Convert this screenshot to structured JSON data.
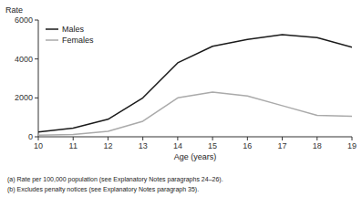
{
  "chart_data": {
    "type": "line",
    "x": [
      10,
      11,
      12,
      13,
      14,
      15,
      16,
      17,
      18,
      19
    ],
    "series": [
      {
        "name": "Males",
        "color": "#1a1a1a",
        "values": [
          250,
          450,
          900,
          2000,
          3800,
          4650,
          5000,
          5250,
          5100,
          4600
        ]
      },
      {
        "name": "Females",
        "color": "#aaaaaa",
        "values": [
          80,
          120,
          280,
          800,
          2000,
          2300,
          2100,
          1600,
          1100,
          1050
        ]
      }
    ],
    "xlabel": "Age (years)",
    "ylabel": "Rate",
    "xlim": [
      10,
      19
    ],
    "ylim": [
      0,
      6000
    ],
    "xticks": [
      10,
      11,
      12,
      13,
      14,
      15,
      16,
      17,
      18,
      19
    ],
    "yticks": [
      0,
      2000,
      4000,
      6000
    ],
    "annotations": [
      "(a)  Rate per 100,000 population (see Explanatory Notes paragraphs 24–26).",
      "(b)  Excludes penalty notices (see Explanatory Notes paragraph 35)."
    ],
    "legend": "upper left",
    "grid": false
  }
}
